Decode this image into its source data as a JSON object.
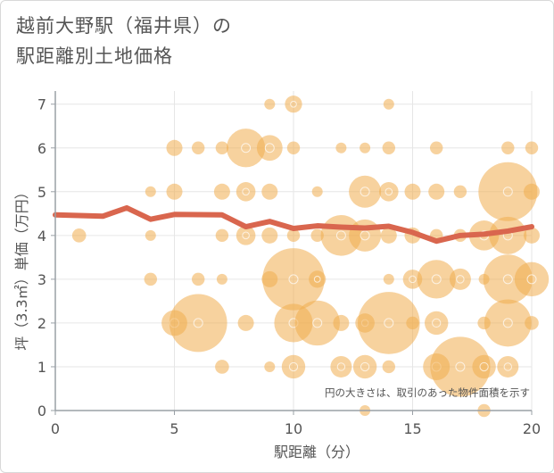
{
  "title": {
    "line1": "越前大野駅（福井県）の",
    "line2": "駅距離別土地価格"
  },
  "colors": {
    "bubble": "#f0ad4e",
    "line": "#d9664e",
    "axis": "#9aa0a6",
    "grid": "#e6e6e6",
    "text": "#555555"
  },
  "chart_data": {
    "type": "scatter",
    "xlabel": "駅距離（分）",
    "ylabel": "坪（3.3㎡）単価（万円）",
    "xlim": [
      0,
      20
    ],
    "ylim": [
      0,
      7.3
    ],
    "xticks": [
      0,
      5,
      10,
      15,
      20
    ],
    "yticks": [
      0,
      1,
      2,
      3,
      4,
      5,
      6,
      7
    ],
    "note": "円の大きさは、取引のあった物件面積を示す",
    "bubbles": [
      {
        "x": 1,
        "y": 4,
        "s": 1.3
      },
      {
        "x": 4,
        "y": 5,
        "s": 1
      },
      {
        "x": 4,
        "y": 4,
        "s": 1
      },
      {
        "x": 4,
        "y": 3,
        "s": 1.2
      },
      {
        "x": 5,
        "y": 6,
        "s": 1.5
      },
      {
        "x": 5,
        "y": 5,
        "s": 1.5
      },
      {
        "x": 5,
        "y": 2,
        "s": 2.4
      },
      {
        "x": 6,
        "y": 6,
        "s": 1.2
      },
      {
        "x": 6,
        "y": 3,
        "s": 1.2
      },
      {
        "x": 6,
        "y": 2,
        "s": 5.4
      },
      {
        "x": 7,
        "y": 6,
        "s": 1.2
      },
      {
        "x": 7,
        "y": 5,
        "s": 1.5
      },
      {
        "x": 7,
        "y": 4,
        "s": 1.2
      },
      {
        "x": 7,
        "y": 3,
        "s": 1
      },
      {
        "x": 7,
        "y": 1,
        "s": 1.3
      },
      {
        "x": 8,
        "y": 6,
        "s": 3.6
      },
      {
        "x": 8,
        "y": 5,
        "s": 1.8
      },
      {
        "x": 8,
        "y": 4,
        "s": 1.8
      },
      {
        "x": 8,
        "y": 2,
        "s": 1.5
      },
      {
        "x": 9,
        "y": 7,
        "s": 1
      },
      {
        "x": 9,
        "y": 6,
        "s": 2.4
      },
      {
        "x": 9,
        "y": 5,
        "s": 1.5
      },
      {
        "x": 9,
        "y": 4,
        "s": 1.5
      },
      {
        "x": 9,
        "y": 3,
        "s": 1.5
      },
      {
        "x": 9,
        "y": 1,
        "s": 1
      },
      {
        "x": 10,
        "y": 7,
        "s": 1.6
      },
      {
        "x": 10,
        "y": 6,
        "s": 1.2
      },
      {
        "x": 10,
        "y": 4,
        "s": 1.2
      },
      {
        "x": 10,
        "y": 3,
        "s": 5.8
      },
      {
        "x": 10,
        "y": 2,
        "s": 3.6
      },
      {
        "x": 10,
        "y": 1,
        "s": 2.2
      },
      {
        "x": 11,
        "y": 5,
        "s": 1
      },
      {
        "x": 11,
        "y": 4,
        "s": 1.2
      },
      {
        "x": 11,
        "y": 3,
        "s": 1.6
      },
      {
        "x": 11,
        "y": 2,
        "s": 4.2
      },
      {
        "x": 12,
        "y": 6,
        "s": 1
      },
      {
        "x": 12,
        "y": 4,
        "s": 3.8
      },
      {
        "x": 12,
        "y": 2,
        "s": 1.5
      },
      {
        "x": 12,
        "y": 1,
        "s": 2
      },
      {
        "x": 13,
        "y": 6,
        "s": 1
      },
      {
        "x": 13,
        "y": 5,
        "s": 3
      },
      {
        "x": 13,
        "y": 4,
        "s": 3
      },
      {
        "x": 13,
        "y": 2,
        "s": 1.8
      },
      {
        "x": 13,
        "y": 1,
        "s": 2.2
      },
      {
        "x": 13,
        "y": 0,
        "s": 1
      },
      {
        "x": 14,
        "y": 7,
        "s": 1
      },
      {
        "x": 14,
        "y": 6,
        "s": 1.2
      },
      {
        "x": 14,
        "y": 5,
        "s": 1.8
      },
      {
        "x": 14,
        "y": 4,
        "s": 1.5
      },
      {
        "x": 14,
        "y": 3,
        "s": 1
      },
      {
        "x": 14,
        "y": 2,
        "s": 5.8
      },
      {
        "x": 14,
        "y": 1,
        "s": 1.2
      },
      {
        "x": 15,
        "y": 5,
        "s": 1.5
      },
      {
        "x": 15,
        "y": 4,
        "s": 1.5
      },
      {
        "x": 15,
        "y": 3,
        "s": 1.8
      },
      {
        "x": 15,
        "y": 2,
        "s": 1.2
      },
      {
        "x": 16,
        "y": 6,
        "s": 1.2
      },
      {
        "x": 16,
        "y": 5,
        "s": 1.5
      },
      {
        "x": 16,
        "y": 4,
        "s": 1.2
      },
      {
        "x": 16,
        "y": 3,
        "s": 3.6
      },
      {
        "x": 16,
        "y": 2,
        "s": 2.2
      },
      {
        "x": 16,
        "y": 1,
        "s": 2.5
      },
      {
        "x": 17,
        "y": 5,
        "s": 1.2
      },
      {
        "x": 17,
        "y": 4,
        "s": 1.2
      },
      {
        "x": 17,
        "y": 3,
        "s": 2
      },
      {
        "x": 17,
        "y": 1,
        "s": 5.6
      },
      {
        "x": 18,
        "y": 4,
        "s": 2.8
      },
      {
        "x": 18,
        "y": 3,
        "s": 1
      },
      {
        "x": 18,
        "y": 2,
        "s": 1.2
      },
      {
        "x": 18,
        "y": 1,
        "s": 2.2
      },
      {
        "x": 18,
        "y": 0,
        "s": 1.2
      },
      {
        "x": 19,
        "y": 6,
        "s": 1.2
      },
      {
        "x": 19,
        "y": 5,
        "s": 5.5
      },
      {
        "x": 19,
        "y": 4,
        "s": 3.5
      },
      {
        "x": 19,
        "y": 3,
        "s": 4.6
      },
      {
        "x": 19,
        "y": 2,
        "s": 4.4
      },
      {
        "x": 19,
        "y": 1,
        "s": 2
      },
      {
        "x": 20,
        "y": 6,
        "s": 1.2
      },
      {
        "x": 20,
        "y": 5,
        "s": 1.5
      },
      {
        "x": 20,
        "y": 4,
        "s": 1.5
      },
      {
        "x": 20,
        "y": 3,
        "s": 3.2
      },
      {
        "x": 20,
        "y": 2,
        "s": 1.3
      }
    ],
    "line": {
      "x": [
        0,
        2,
        3,
        4,
        5,
        7,
        8,
        9,
        10,
        11,
        12,
        13,
        14,
        15,
        16,
        17,
        18,
        19,
        20
      ],
      "y": [
        4.47,
        4.44,
        4.63,
        4.37,
        4.48,
        4.47,
        4.2,
        4.32,
        4.16,
        4.22,
        4.19,
        4.17,
        4.21,
        4.07,
        3.87,
        4.0,
        4.03,
        4.1,
        4.2
      ]
    }
  }
}
